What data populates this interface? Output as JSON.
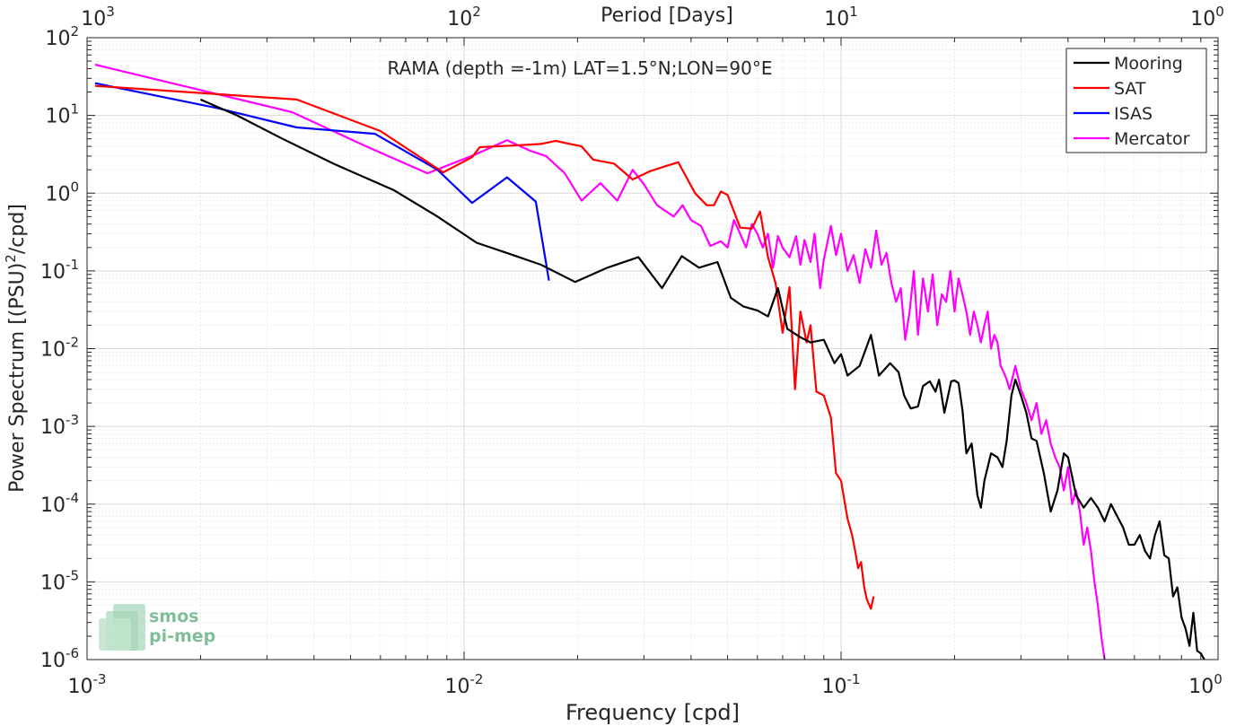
{
  "chart_data": {
    "type": "line",
    "title": "RAMA (depth =-1m) LAT=1.5°N;LON=90°E",
    "xlabel": "Frequency [cpd]",
    "ylabel": "Power Spectrum [(PSU)²/cpd]",
    "top_xlabel": "Period [Days]",
    "x_scale": "log",
    "y_scale": "log",
    "xlim": [
      0.001,
      1
    ],
    "ylim": [
      1e-06,
      100
    ],
    "x_ticks": [
      {
        "value": 0.001,
        "base": "10",
        "exp": "-3"
      },
      {
        "value": 0.01,
        "base": "10",
        "exp": "-2"
      },
      {
        "value": 0.1,
        "base": "10",
        "exp": "-1"
      },
      {
        "value": 1,
        "base": "10",
        "exp": "0"
      }
    ],
    "top_ticks": [
      {
        "value": 0.001,
        "base": "10",
        "exp": "3"
      },
      {
        "value": 0.01,
        "base": "10",
        "exp": "2"
      },
      {
        "value": 0.1,
        "base": "10",
        "exp": "1"
      },
      {
        "value": 1,
        "base": "10",
        "exp": "0"
      }
    ],
    "y_ticks": [
      {
        "value": 100,
        "base": "10",
        "exp": "2"
      },
      {
        "value": 10,
        "base": "10",
        "exp": "1"
      },
      {
        "value": 1,
        "base": "10",
        "exp": "0"
      },
      {
        "value": 0.1,
        "base": "10",
        "exp": "-1"
      },
      {
        "value": 0.01,
        "base": "10",
        "exp": "-2"
      },
      {
        "value": 0.001,
        "base": "10",
        "exp": "-3"
      },
      {
        "value": 0.0001,
        "base": "10",
        "exp": "-4"
      },
      {
        "value": 1e-05,
        "base": "10",
        "exp": "-5"
      },
      {
        "value": 1e-06,
        "base": "10",
        "exp": "-6"
      }
    ],
    "grid": true,
    "legend_position": "top-right",
    "watermark": {
      "line1": "smos",
      "line2": "pi-mep"
    },
    "series": [
      {
        "name": "Mooring",
        "color": "#000000",
        "points": [
          [
            0.002,
            16
          ],
          [
            0.0025,
            10
          ],
          [
            0.0033,
            5
          ],
          [
            0.0045,
            2.4
          ],
          [
            0.0065,
            1.1
          ],
          [
            0.0085,
            0.5
          ],
          [
            0.0108,
            0.23
          ],
          [
            0.013,
            0.17
          ],
          [
            0.016,
            0.12
          ],
          [
            0.0197,
            0.072
          ],
          [
            0.024,
            0.11
          ],
          [
            0.029,
            0.15
          ],
          [
            0.0335,
            0.06
          ],
          [
            0.0378,
            0.155
          ],
          [
            0.042,
            0.11
          ],
          [
            0.047,
            0.13
          ],
          [
            0.051,
            0.045
          ],
          [
            0.055,
            0.035
          ],
          [
            0.06,
            0.031
          ],
          [
            0.064,
            0.026
          ],
          [
            0.068,
            0.06
          ],
          [
            0.072,
            0.018
          ],
          [
            0.078,
            0.014
          ],
          [
            0.083,
            0.012
          ],
          [
            0.09,
            0.013
          ],
          [
            0.096,
            0.0065
          ],
          [
            0.1,
            0.0085
          ],
          [
            0.104,
            0.0045
          ],
          [
            0.112,
            0.006
          ],
          [
            0.12,
            0.015
          ],
          [
            0.126,
            0.0045
          ],
          [
            0.135,
            0.0065
          ],
          [
            0.142,
            0.005
          ],
          [
            0.147,
            0.0025
          ],
          [
            0.153,
            0.0017
          ],
          [
            0.16,
            0.0018
          ],
          [
            0.165,
            0.0033
          ],
          [
            0.172,
            0.0038
          ],
          [
            0.178,
            0.0028
          ],
          [
            0.182,
            0.004
          ],
          [
            0.188,
            0.0015
          ],
          [
            0.196,
            0.0038
          ],
          [
            0.2,
            0.0039
          ],
          [
            0.205,
            0.0036
          ],
          [
            0.21,
            0.0016
          ],
          [
            0.215,
            0.00045
          ],
          [
            0.222,
            0.0006
          ],
          [
            0.23,
            0.00013
          ],
          [
            0.235,
            9e-05
          ],
          [
            0.24,
            0.0002
          ],
          [
            0.25,
            0.00045
          ],
          [
            0.26,
            0.0004
          ],
          [
            0.268,
            0.0003
          ],
          [
            0.275,
            0.00065
          ],
          [
            0.283,
            0.0025
          ],
          [
            0.29,
            0.004
          ],
          [
            0.3,
            0.0025
          ],
          [
            0.31,
            0.0015
          ],
          [
            0.32,
            0.0007
          ],
          [
            0.33,
            0.00065
          ],
          [
            0.345,
            0.00025
          ],
          [
            0.36,
            8e-05
          ],
          [
            0.375,
            0.00015
          ],
          [
            0.39,
            0.00045
          ],
          [
            0.4,
            0.0004
          ],
          [
            0.42,
            0.00013
          ],
          [
            0.44,
            9e-05
          ],
          [
            0.46,
            0.00012
          ],
          [
            0.48,
            9e-05
          ],
          [
            0.5,
            6e-05
          ],
          [
            0.52,
            0.0001
          ],
          [
            0.54,
            7e-05
          ],
          [
            0.56,
            5e-05
          ],
          [
            0.58,
            3e-05
          ],
          [
            0.6,
            3e-05
          ],
          [
            0.62,
            4e-05
          ],
          [
            0.64,
            2.5e-05
          ],
          [
            0.66,
            2e-05
          ],
          [
            0.68,
            4e-05
          ],
          [
            0.7,
            6e-05
          ],
          [
            0.72,
            2.2e-05
          ],
          [
            0.74,
            2e-05
          ],
          [
            0.76,
            6.5e-06
          ],
          [
            0.78,
            8.5e-06
          ],
          [
            0.8,
            3.5e-06
          ],
          [
            0.82,
            2.5e-06
          ],
          [
            0.84,
            1.5e-06
          ],
          [
            0.86,
            4e-06
          ],
          [
            0.88,
            1.3e-06
          ],
          [
            0.9,
            1.2e-06
          ],
          [
            0.92,
            1e-06
          ]
        ]
      },
      {
        "name": "SAT",
        "color": "#ff0000",
        "points": [
          [
            0.00105,
            24
          ],
          [
            0.0036,
            16
          ],
          [
            0.006,
            6.3
          ],
          [
            0.0088,
            1.85
          ],
          [
            0.0105,
            2.9
          ],
          [
            0.011,
            3.9
          ],
          [
            0.0135,
            4.1
          ],
          [
            0.016,
            4.3
          ],
          [
            0.0175,
            4.7
          ],
          [
            0.0205,
            4
          ],
          [
            0.022,
            2.7
          ],
          [
            0.025,
            2.4
          ],
          [
            0.028,
            1.5
          ],
          [
            0.031,
            1.9
          ],
          [
            0.034,
            2.2
          ],
          [
            0.037,
            2.5
          ],
          [
            0.041,
            1
          ],
          [
            0.044,
            0.7
          ],
          [
            0.046,
            0.7
          ],
          [
            0.048,
            1.05
          ],
          [
            0.05,
            0.95
          ],
          [
            0.054,
            0.36
          ],
          [
            0.058,
            0.35
          ],
          [
            0.061,
            0.58
          ],
          [
            0.064,
            0.15
          ],
          [
            0.067,
            0.07
          ],
          [
            0.07,
            0.016
          ],
          [
            0.073,
            0.062
          ],
          [
            0.0755,
            0.003
          ],
          [
            0.078,
            0.03
          ],
          [
            0.081,
            0.012
          ],
          [
            0.083,
            0.02
          ],
          [
            0.086,
            0.0028
          ],
          [
            0.09,
            0.0025
          ],
          [
            0.094,
            0.0013
          ],
          [
            0.097,
            0.00025
          ],
          [
            0.1,
            0.0002
          ],
          [
            0.104,
            6.5e-05
          ],
          [
            0.107,
            4e-05
          ],
          [
            0.109,
            2.5e-05
          ],
          [
            0.111,
            1.5e-05
          ],
          [
            0.113,
            1.8e-05
          ],
          [
            0.115,
            9e-06
          ],
          [
            0.117,
            6e-06
          ],
          [
            0.12,
            4.5e-06
          ],
          [
            0.122,
            6.5e-06
          ]
        ]
      },
      {
        "name": "ISAS",
        "color": "#0000ff",
        "points": [
          [
            0.00105,
            26
          ],
          [
            0.0022,
            12.5
          ],
          [
            0.0036,
            7
          ],
          [
            0.0058,
            5.8
          ],
          [
            0.0085,
            2
          ],
          [
            0.0105,
            0.75
          ],
          [
            0.013,
            1.6
          ],
          [
            0.0155,
            0.78
          ],
          [
            0.0168,
            0.075
          ]
        ]
      },
      {
        "name": "Mercator",
        "color": "#ff00ff",
        "points": [
          [
            0.00105,
            45
          ],
          [
            0.0035,
            11
          ],
          [
            0.0055,
            4
          ],
          [
            0.008,
            1.8
          ],
          [
            0.0095,
            2.5
          ],
          [
            0.0108,
            3.2
          ],
          [
            0.013,
            4.8
          ],
          [
            0.015,
            3.5
          ],
          [
            0.0165,
            3
          ],
          [
            0.0185,
            1.8
          ],
          [
            0.0205,
            0.8
          ],
          [
            0.023,
            1.35
          ],
          [
            0.0255,
            0.8
          ],
          [
            0.028,
            2
          ],
          [
            0.03,
            1.3
          ],
          [
            0.0325,
            0.7
          ],
          [
            0.036,
            0.5
          ],
          [
            0.038,
            0.7
          ],
          [
            0.04,
            0.45
          ],
          [
            0.0425,
            0.38
          ],
          [
            0.045,
            0.21
          ],
          [
            0.048,
            0.24
          ],
          [
            0.05,
            0.2
          ],
          [
            0.052,
            0.45
          ],
          [
            0.054,
            0.3
          ],
          [
            0.056,
            0.2
          ],
          [
            0.058,
            0.4
          ],
          [
            0.06,
            0.3
          ],
          [
            0.062,
            0.2
          ],
          [
            0.064,
            0.3
          ],
          [
            0.066,
            0.11
          ],
          [
            0.068,
            0.28
          ],
          [
            0.07,
            0.2
          ],
          [
            0.073,
            0.15
          ],
          [
            0.076,
            0.28
          ],
          [
            0.078,
            0.12
          ],
          [
            0.08,
            0.25
          ],
          [
            0.083,
            0.13
          ],
          [
            0.085,
            0.3
          ],
          [
            0.088,
            0.06
          ],
          [
            0.09,
            0.14
          ],
          [
            0.094,
            0.38
          ],
          [
            0.097,
            0.16
          ],
          [
            0.1,
            0.3
          ],
          [
            0.104,
            0.1
          ],
          [
            0.108,
            0.16
          ],
          [
            0.112,
            0.07
          ],
          [
            0.116,
            0.19
          ],
          [
            0.12,
            0.11
          ],
          [
            0.124,
            0.33
          ],
          [
            0.128,
            0.12
          ],
          [
            0.132,
            0.17
          ],
          [
            0.136,
            0.07
          ],
          [
            0.14,
            0.04
          ],
          [
            0.144,
            0.06
          ],
          [
            0.148,
            0.013
          ],
          [
            0.152,
            0.03
          ],
          [
            0.156,
            0.1
          ],
          [
            0.16,
            0.015
          ],
          [
            0.165,
            0.08
          ],
          [
            0.17,
            0.03
          ],
          [
            0.175,
            0.09
          ],
          [
            0.18,
            0.02
          ],
          [
            0.185,
            0.05
          ],
          [
            0.19,
            0.04
          ],
          [
            0.195,
            0.1
          ],
          [
            0.2,
            0.03
          ],
          [
            0.205,
            0.08
          ],
          [
            0.21,
            0.05
          ],
          [
            0.215,
            0.03
          ],
          [
            0.22,
            0.015
          ],
          [
            0.225,
            0.03
          ],
          [
            0.23,
            0.02
          ],
          [
            0.235,
            0.012
          ],
          [
            0.24,
            0.02
          ],
          [
            0.245,
            0.03
          ],
          [
            0.25,
            0.01
          ],
          [
            0.255,
            0.015
          ],
          [
            0.26,
            0.012
          ],
          [
            0.265,
            0.006
          ],
          [
            0.27,
            0.005
          ],
          [
            0.275,
            0.004
          ],
          [
            0.28,
            0.003
          ],
          [
            0.29,
            0.006
          ],
          [
            0.3,
            0.003
          ],
          [
            0.31,
            0.002
          ],
          [
            0.32,
            0.0012
          ],
          [
            0.33,
            0.002
          ],
          [
            0.34,
            0.0008
          ],
          [
            0.35,
            0.0012
          ],
          [
            0.36,
            0.0006
          ],
          [
            0.37,
            0.0004
          ],
          [
            0.38,
            0.0003
          ],
          [
            0.39,
            0.00015
          ],
          [
            0.4,
            0.0003
          ],
          [
            0.41,
            0.0001
          ],
          [
            0.42,
            0.00015
          ],
          [
            0.43,
            8e-05
          ],
          [
            0.44,
            3e-05
          ],
          [
            0.45,
            5e-05
          ],
          [
            0.46,
            2.5e-05
          ],
          [
            0.47,
            1e-05
          ],
          [
            0.48,
            5e-06
          ],
          [
            0.49,
            2e-06
          ],
          [
            0.5,
            1e-06
          ]
        ]
      }
    ]
  }
}
